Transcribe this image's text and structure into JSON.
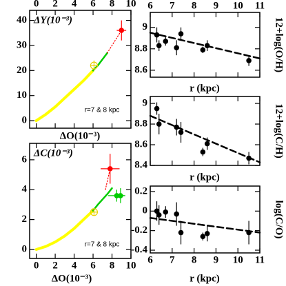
{
  "chart_data": [
    {
      "type": "scatter",
      "y_label": "ΔY(10⁻³)",
      "x_label": "ΔO(10⁻³)",
      "annotation": "r=7 & 8 kpc",
      "xlim": [
        -0.7,
        10
      ],
      "ylim": [
        -3,
        44
      ],
      "xticks": [
        0,
        2,
        4,
        6,
        8,
        10
      ],
      "yticks": [
        0,
        10,
        20,
        30,
        40
      ],
      "curves": [
        {
          "color": "#ffff00",
          "width": 4,
          "dotted": false,
          "x": [
            0,
            1,
            2,
            3,
            4,
            5,
            6
          ],
          "y": [
            0,
            2.5,
            5.5,
            9,
            12.5,
            16,
            20
          ]
        },
        {
          "color": "#00cc00",
          "width": 2.5,
          "dotted": false,
          "x": [
            6,
            6.5,
            7,
            7.5
          ],
          "y": [
            20,
            22,
            24.5,
            27
          ]
        },
        {
          "color": "#ff0000",
          "width": 1.2,
          "dotted": true,
          "x": [
            7.5,
            9
          ],
          "y": [
            27,
            36
          ]
        }
      ],
      "points": [
        {
          "color": "#ffff00",
          "open": true,
          "x": [
            6.1
          ],
          "y": [
            22
          ],
          "xerr": [
            0.4
          ],
          "yerr": [
            2
          ]
        },
        {
          "color": "#ff0000",
          "open": false,
          "x": [
            9
          ],
          "y": [
            36
          ],
          "xerr": [
            0.5
          ],
          "yerr": [
            4
          ]
        }
      ]
    },
    {
      "type": "scatter",
      "y_label": "ΔC(10⁻³)",
      "x_label": "ΔO(10⁻³)",
      "annotation": "r=7 & 8 kpc",
      "xlim": [
        -0.7,
        10
      ],
      "ylim": [
        -0.6,
        7.1
      ],
      "xticks": [
        0,
        2,
        4,
        6,
        8,
        10
      ],
      "yticks": [
        0,
        2,
        4,
        6
      ],
      "curves": [
        {
          "color": "#ffff00",
          "width": 4,
          "dotted": false,
          "x": [
            0,
            1,
            2,
            3,
            4,
            5,
            6
          ],
          "y": [
            0,
            0.2,
            0.5,
            0.9,
            1.4,
            2,
            2.6
          ]
        },
        {
          "color": "#00cc00",
          "width": 2.5,
          "dotted": false,
          "x": [
            6,
            6.5,
            7,
            7.5,
            8
          ],
          "y": [
            2.6,
            3,
            3.35,
            3.7,
            4.1
          ]
        },
        {
          "color": "#ff0000",
          "width": 1.2,
          "dotted": true,
          "x": [
            7.3,
            7.8
          ],
          "y": [
            4,
            5.4
          ]
        }
      ],
      "points": [
        {
          "color": "#ffff00",
          "open": true,
          "x": [
            6.1
          ],
          "y": [
            2.5
          ],
          "xerr": [
            0.4
          ],
          "yerr": [
            0.2
          ]
        },
        {
          "color": "#ff0000",
          "open": false,
          "x": [
            7.8
          ],
          "y": [
            5.4
          ],
          "xerr": [
            1
          ],
          "yerr": [
            1
          ]
        },
        {
          "color": "#00cc00",
          "open": false,
          "x": [
            8.5,
            8.9
          ],
          "y": [
            3.6,
            3.6
          ],
          "xerr": [
            0.9,
            0.4
          ],
          "yerr": [
            0.4,
            0.5
          ]
        }
      ]
    },
    {
      "type": "scatter",
      "y_label": "12+log(O/H)",
      "x_label": "r (kpc)",
      "xlim": [
        6,
        11
      ],
      "ylim": [
        8.535,
        9.14
      ],
      "xticks": [
        6,
        7,
        8,
        9,
        10,
        11
      ],
      "yticks": [
        8.6,
        8.8,
        9
      ],
      "curves": [
        {
          "color": "#000000",
          "width": 2.5,
          "dashed": true,
          "x": [
            6,
            11
          ],
          "y": [
            8.95,
            8.71
          ]
        }
      ],
      "points": [
        {
          "color": "#000000",
          "open": false,
          "x": [
            6.3,
            6.4,
            6.7,
            7.2,
            7.4,
            8.4,
            8.6,
            10.5
          ],
          "y": [
            8.93,
            8.83,
            8.87,
            8.81,
            8.94,
            8.79,
            8.83,
            8.69
          ],
          "yerr": [
            0.07,
            0.05,
            0.04,
            0.07,
            0.06,
            0.03,
            0.05,
            0.05
          ]
        }
      ]
    },
    {
      "type": "scatter",
      "y_label": "12+log(C/H)",
      "x_label": "r (kpc)",
      "xlim": [
        6,
        11
      ],
      "ylim": [
        8.4,
        9.067
      ],
      "xticks": [
        6,
        7,
        8,
        9,
        10,
        11
      ],
      "yticks": [
        8.4,
        8.6,
        8.8,
        9
      ],
      "curves": [
        {
          "color": "#000000",
          "width": 2.5,
          "dashed": true,
          "x": [
            6,
            11
          ],
          "y": [
            8.88,
            8.43
          ]
        }
      ],
      "points": [
        {
          "color": "#000000",
          "open": false,
          "x": [
            6.3,
            6.4,
            7.2,
            7.4,
            8.4,
            8.6,
            10.5
          ],
          "y": [
            8.95,
            8.8,
            8.77,
            8.72,
            8.53,
            8.61,
            8.47
          ],
          "yerr": [
            0.06,
            0.1,
            0.08,
            0.1,
            0.04,
            0.06,
            0.06
          ]
        }
      ]
    },
    {
      "type": "scatter",
      "y_label": "log(C/O)",
      "x_label": "r (kpc)",
      "xlim": [
        6,
        11
      ],
      "ylim": [
        -0.428,
        0.256
      ],
      "xticks": [
        6,
        7,
        8,
        9,
        10,
        11
      ],
      "yticks": [
        -0.4,
        -0.2,
        0,
        0.2
      ],
      "curves": [
        {
          "color": "#000000",
          "width": 2.5,
          "dashed": true,
          "x": [
            6,
            11
          ],
          "y": [
            -0.07,
            -0.22
          ]
        }
      ],
      "points": [
        {
          "color": "#000000",
          "open": false,
          "x": [
            6.3,
            6.4,
            6.7,
            7.2,
            7.4,
            8.4,
            8.6,
            10.5
          ],
          "y": [
            0,
            -0.04,
            -0.01,
            -0.03,
            -0.22,
            -0.26,
            -0.23,
            -0.22
          ],
          "yerr": [
            0.1,
            0.1,
            0.06,
            0.12,
            0.12,
            0.04,
            0.08,
            0.12
          ]
        }
      ]
    }
  ]
}
